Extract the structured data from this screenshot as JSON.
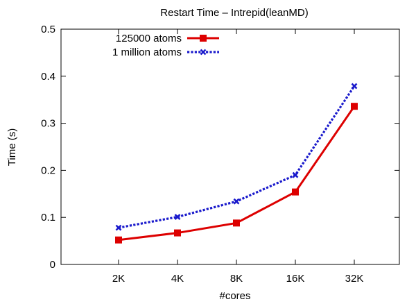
{
  "chart_data": {
    "type": "line",
    "title": "Restart Time – Intrepid(leanMD)",
    "xlabel": "#cores",
    "ylabel": "Time (s)",
    "categories": [
      "2K",
      "4K",
      "8K",
      "16K",
      "32K"
    ],
    "ylim": [
      0,
      0.5
    ],
    "yticks": [
      "0",
      "0.1",
      "0.2",
      "0.3",
      "0.4",
      "0.5"
    ],
    "yticks_values": [
      0,
      0.1,
      0.2,
      0.3,
      0.4,
      0.5
    ],
    "grid": false,
    "legend_position": "top-left",
    "series": [
      {
        "name": "125000 atoms",
        "values": [
          0.052,
          0.067,
          0.088,
          0.154,
          0.336
        ],
        "color": "#dd0000",
        "style": "solid",
        "marker": "square"
      },
      {
        "name": "1 million atoms",
        "values": [
          0.078,
          0.101,
          0.134,
          0.19,
          0.379
        ],
        "color": "#1a1acc",
        "style": "dotted",
        "marker": "x"
      }
    ]
  }
}
